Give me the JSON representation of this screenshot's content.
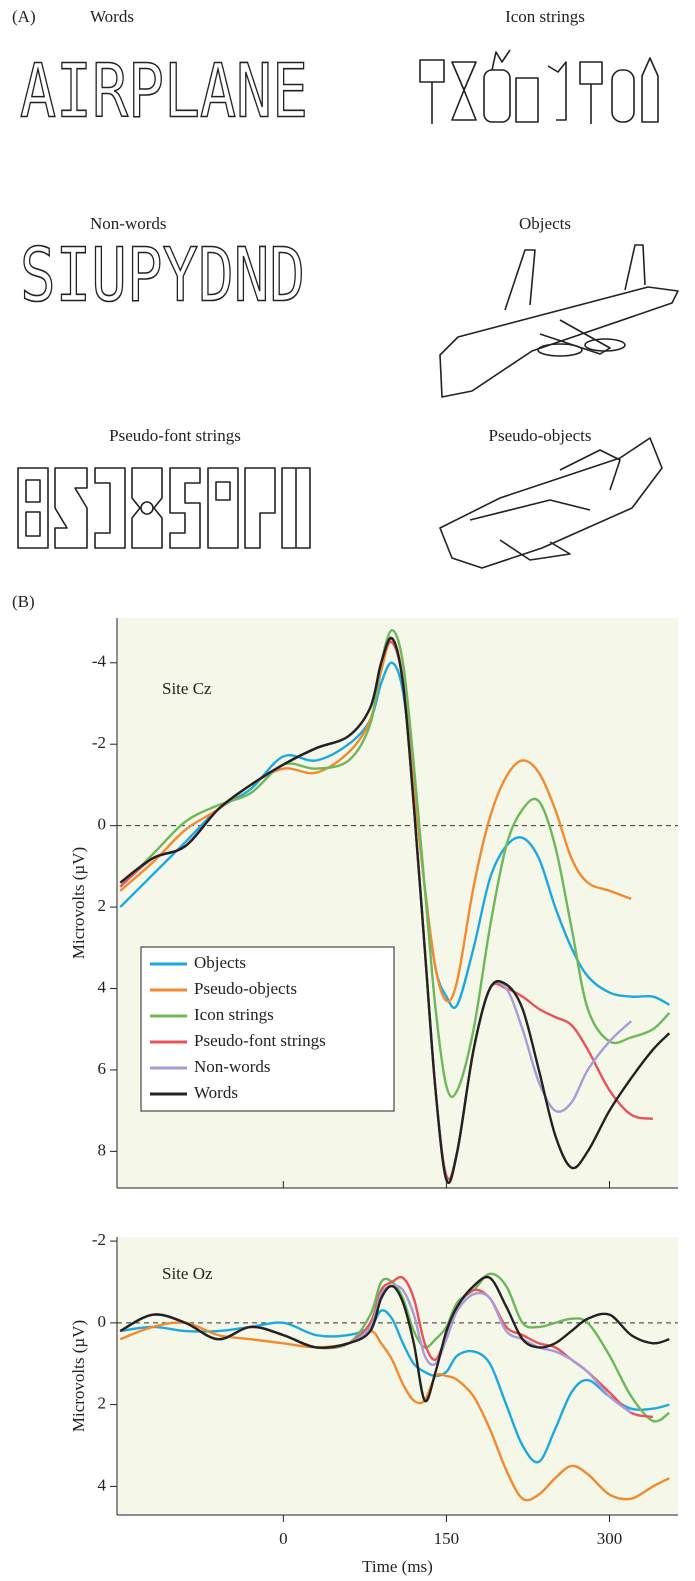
{
  "panel_a": {
    "label": "(A)",
    "items": [
      "Words",
      "Icon strings",
      "Non-words",
      "Objects",
      "Pseudo-font strings",
      "Pseudo-objects"
    ],
    "stimuli": [
      "AIRPLANE",
      "SIUPYDND"
    ]
  },
  "panel_b_label": "(B)",
  "chart_data": [
    {
      "type": "line",
      "annotation": "Site Cz",
      "y_label": "Microvolts (µV)",
      "invert_y": true,
      "show_xtick_labels": false,
      "legend": "lower-left",
      "x": [
        -150,
        -120,
        -90,
        -60,
        -30,
        0,
        30,
        60,
        80,
        90,
        100,
        110,
        120,
        130,
        140,
        150,
        160,
        175,
        190,
        205,
        220,
        235,
        250,
        265,
        280,
        300,
        320,
        340,
        355
      ],
      "xlim": [
        -153,
        363
      ],
      "xticks": [
        0,
        150,
        300
      ],
      "ylim": [
        -5.1,
        8.9
      ],
      "yticks": [
        -4,
        -2,
        0,
        2,
        4,
        6,
        8
      ],
      "series": [
        {
          "name": "Objects",
          "color": "#1ea8e0",
          "values": [
            2.0,
            1.2,
            0.4,
            -0.4,
            -0.9,
            -1.7,
            -1.6,
            -2.0,
            -2.6,
            -3.5,
            -4.0,
            -3.3,
            -1.0,
            1.5,
            3.5,
            4.2,
            4.4,
            3.0,
            1.3,
            0.5,
            0.3,
            0.8,
            2.0,
            3.0,
            3.7,
            4.1,
            4.2,
            4.2,
            4.4
          ]
        },
        {
          "name": "Pseudo-objects",
          "color": "#f28a30",
          "values": [
            1.6,
            0.9,
            0.1,
            -0.4,
            -1.0,
            -1.4,
            -1.3,
            -1.8,
            -2.6,
            -3.8,
            -4.6,
            -3.6,
            -1.0,
            1.5,
            3.5,
            4.3,
            3.8,
            1.5,
            -0.2,
            -1.2,
            -1.6,
            -1.3,
            -0.4,
            0.8,
            1.4,
            1.6,
            1.8,
            null,
            null
          ]
        },
        {
          "name": "Icon strings",
          "color": "#6cb85a",
          "values": [
            1.5,
            0.7,
            -0.1,
            -0.5,
            -0.8,
            -1.5,
            -1.4,
            -1.6,
            -2.5,
            -4.0,
            -4.8,
            -4.0,
            -1.5,
            1.5,
            4.5,
            6.4,
            6.5,
            5.0,
            2.5,
            0.5,
            -0.4,
            -0.6,
            0.5,
            2.5,
            4.5,
            5.3,
            5.2,
            5.0,
            4.6
          ]
        },
        {
          "name": "Pseudo-font strings",
          "color": "#e8525a",
          "values": [
            1.5,
            0.8,
            0.5,
            -0.4,
            -1.0,
            -1.5,
            -1.9,
            -2.2,
            -2.9,
            -4.0,
            -4.5,
            -3.5,
            -0.5,
            3.0,
            6.5,
            8.6,
            8.0,
            5.5,
            4.0,
            4.0,
            4.2,
            4.5,
            4.7,
            4.9,
            5.5,
            6.5,
            7.1,
            7.2,
            null
          ]
        },
        {
          "name": "Non-words",
          "color": "#a99bd8",
          "values": [
            1.4,
            0.8,
            0.5,
            -0.4,
            -1.0,
            -1.5,
            -1.9,
            -2.2,
            -2.9,
            -4.0,
            -4.6,
            -3.5,
            -0.5,
            3.0,
            6.5,
            8.7,
            8.0,
            5.5,
            4.0,
            4.0,
            5.0,
            6.3,
            7.0,
            6.8,
            6.0,
            5.3,
            4.8,
            null,
            null
          ]
        },
        {
          "name": "Words",
          "color": "#222222",
          "values": [
            1.4,
            0.8,
            0.5,
            -0.4,
            -1.0,
            -1.5,
            -1.9,
            -2.2,
            -2.9,
            -4.0,
            -4.6,
            -3.5,
            -0.5,
            3.0,
            6.5,
            8.7,
            8.0,
            5.5,
            4.0,
            3.9,
            4.5,
            6.0,
            7.6,
            8.4,
            8.0,
            7.0,
            6.2,
            5.5,
            5.1
          ]
        }
      ]
    },
    {
      "type": "line",
      "annotation": "Site Oz",
      "y_label": "Microvolts (µV)",
      "x_label": "Time (ms)",
      "invert_y": true,
      "show_xtick_labels": true,
      "x": [
        -150,
        -120,
        -90,
        -60,
        -30,
        0,
        30,
        60,
        80,
        90,
        100,
        110,
        120,
        130,
        140,
        150,
        160,
        175,
        190,
        205,
        220,
        235,
        250,
        265,
        280,
        300,
        320,
        340,
        355
      ],
      "xlim": [
        -153,
        363
      ],
      "xticks": [
        0,
        150,
        300
      ],
      "ylim": [
        -2.1,
        4.7
      ],
      "yticks": [
        -2,
        0,
        2,
        4
      ],
      "series": [
        {
          "color": "#1ea8e0",
          "values": [
            0.2,
            0.1,
            0.2,
            0.2,
            0.1,
            0.0,
            0.3,
            0.3,
            0.1,
            -0.3,
            -0.1,
            0.5,
            1.0,
            1.2,
            1.3,
            1.2,
            0.8,
            0.7,
            1.0,
            2.0,
            3.0,
            3.4,
            2.6,
            1.7,
            1.4,
            1.8,
            2.1,
            2.1,
            2.0
          ]
        },
        {
          "color": "#f28a30",
          "values": [
            0.4,
            0.1,
            0.0,
            0.3,
            0.4,
            0.5,
            0.6,
            0.5,
            0.2,
            0.5,
            0.9,
            1.5,
            1.9,
            1.9,
            1.3,
            1.3,
            1.4,
            1.8,
            2.6,
            3.6,
            4.3,
            4.2,
            3.8,
            3.5,
            3.7,
            4.2,
            4.3,
            4.0,
            3.8
          ]
        },
        {
          "color": "#6cb85a",
          "values": [
            0.2,
            -0.2,
            0.0,
            0.4,
            0.1,
            0.3,
            0.6,
            0.5,
            -0.2,
            -1.0,
            -1.0,
            -0.6,
            0.2,
            0.6,
            0.4,
            0.1,
            -0.5,
            -0.8,
            -1.2,
            -0.9,
            0.0,
            0.1,
            0.0,
            -0.1,
            0.0,
            0.8,
            1.8,
            2.4,
            2.2
          ]
        },
        {
          "color": "#e8525a",
          "values": [
            0.2,
            -0.2,
            0.0,
            0.4,
            0.1,
            0.3,
            0.6,
            0.5,
            0.0,
            -0.8,
            -1.0,
            -1.1,
            -0.6,
            0.5,
            0.9,
            0.3,
            -0.4,
            -0.8,
            -0.6,
            0.1,
            0.3,
            0.5,
            0.6,
            0.9,
            1.2,
            1.7,
            2.2,
            2.3,
            null
          ]
        },
        {
          "color": "#a99bd8",
          "values": [
            0.2,
            -0.2,
            0.0,
            0.4,
            0.1,
            0.3,
            0.6,
            0.5,
            0.1,
            -0.7,
            -0.9,
            -0.8,
            -0.2,
            0.8,
            1.0,
            0.4,
            -0.3,
            -0.7,
            -0.6,
            0.2,
            0.4,
            0.6,
            0.7,
            0.9,
            1.2,
            1.8,
            2.2,
            null,
            null
          ]
        },
        {
          "color": "#222222",
          "values": [
            0.2,
            -0.2,
            0.0,
            0.4,
            0.1,
            0.3,
            0.6,
            0.5,
            0.2,
            -0.6,
            -0.9,
            -0.5,
            0.5,
            1.9,
            1.2,
            0.2,
            -0.4,
            -0.9,
            -1.1,
            -0.4,
            0.4,
            0.6,
            0.5,
            0.2,
            -0.1,
            -0.2,
            0.3,
            0.5,
            0.4
          ]
        }
      ]
    }
  ]
}
